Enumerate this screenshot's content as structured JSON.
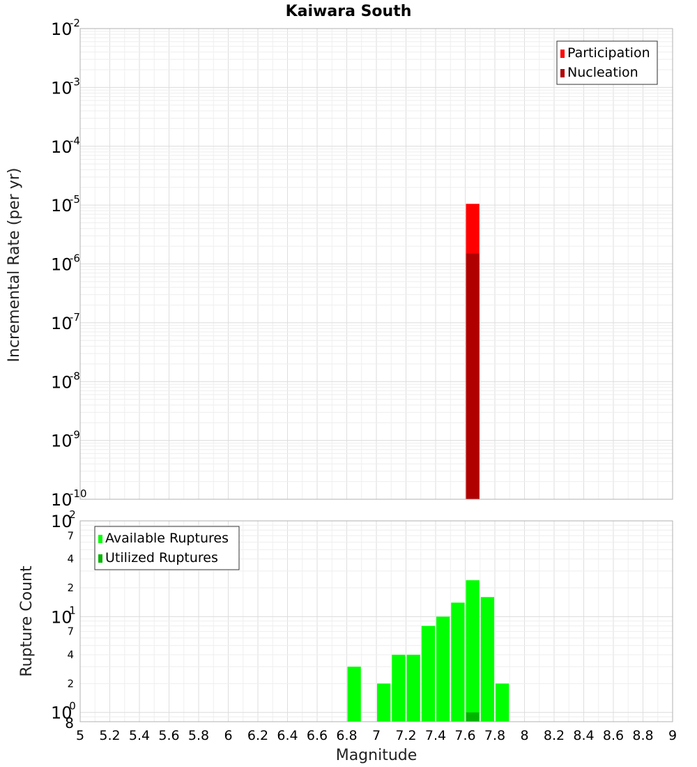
{
  "chart_data": [
    {
      "type": "bar",
      "title": "Kaiwara South",
      "xlabel": "Magnitude",
      "ylabel": "Incremental Rate (per yr)",
      "y_scale": "log",
      "ylim": [
        1e-10,
        0.01
      ],
      "xlim": [
        5,
        9
      ],
      "y_ticks": [
        {
          "base": "10",
          "exp": "-2"
        },
        {
          "base": "10",
          "exp": "-3"
        },
        {
          "base": "10",
          "exp": "-4"
        },
        {
          "base": "10",
          "exp": "-5"
        },
        {
          "base": "10",
          "exp": "-6"
        },
        {
          "base": "10",
          "exp": "-7"
        },
        {
          "base": "10",
          "exp": "-8"
        },
        {
          "base": "10",
          "exp": "-9"
        },
        {
          "base": "10",
          "exp": "-10"
        }
      ],
      "legend_position": "top-right",
      "grid": true,
      "series": [
        {
          "name": "Participation",
          "color": "#ff0000",
          "x": [
            7.65
          ],
          "values": [
            1.05e-05
          ]
        },
        {
          "name": "Nucleation",
          "color": "#b00000",
          "x": [
            7.65
          ],
          "values": [
            1.5e-06
          ]
        }
      ]
    },
    {
      "type": "bar",
      "xlabel": "Magnitude",
      "ylabel": "Rupture Count",
      "y_scale": "log",
      "ylim": [
        0.8,
        100
      ],
      "xlim": [
        5,
        9
      ],
      "y_ticks": [
        {
          "value": 100,
          "base": "10",
          "exp": "2"
        },
        {
          "value": 70,
          "label": "7"
        },
        {
          "value": 40,
          "label": "4"
        },
        {
          "value": 20,
          "label": "2"
        },
        {
          "value": 10,
          "base": "10",
          "exp": "1"
        },
        {
          "value": 7,
          "label": "7"
        },
        {
          "value": 4,
          "label": "4"
        },
        {
          "value": 2,
          "label": "2"
        },
        {
          "value": 1,
          "base": "10",
          "exp": "0"
        },
        {
          "value": 0.8,
          "label": "8"
        }
      ],
      "x_ticks": [
        "5",
        "5.2",
        "5.4",
        "5.6",
        "5.8",
        "6",
        "6.2",
        "6.4",
        "6.6",
        "6.8",
        "7",
        "7.2",
        "7.4",
        "7.6",
        "7.8",
        "8",
        "8.2",
        "8.4",
        "8.6",
        "8.8",
        "9"
      ],
      "legend_position": "top-left",
      "grid": true,
      "series": [
        {
          "name": "Available Ruptures",
          "color": "#00ff00",
          "x": [
            6.85,
            7.05,
            7.15,
            7.25,
            7.35,
            7.45,
            7.55,
            7.65,
            7.75,
            7.85
          ],
          "values": [
            3,
            2,
            4,
            4,
            8,
            10,
            14,
            24,
            16,
            2
          ]
        },
        {
          "name": "Utilized Ruptures",
          "color": "#00b400",
          "x": [
            7.65
          ],
          "values": [
            1
          ]
        }
      ]
    }
  ]
}
